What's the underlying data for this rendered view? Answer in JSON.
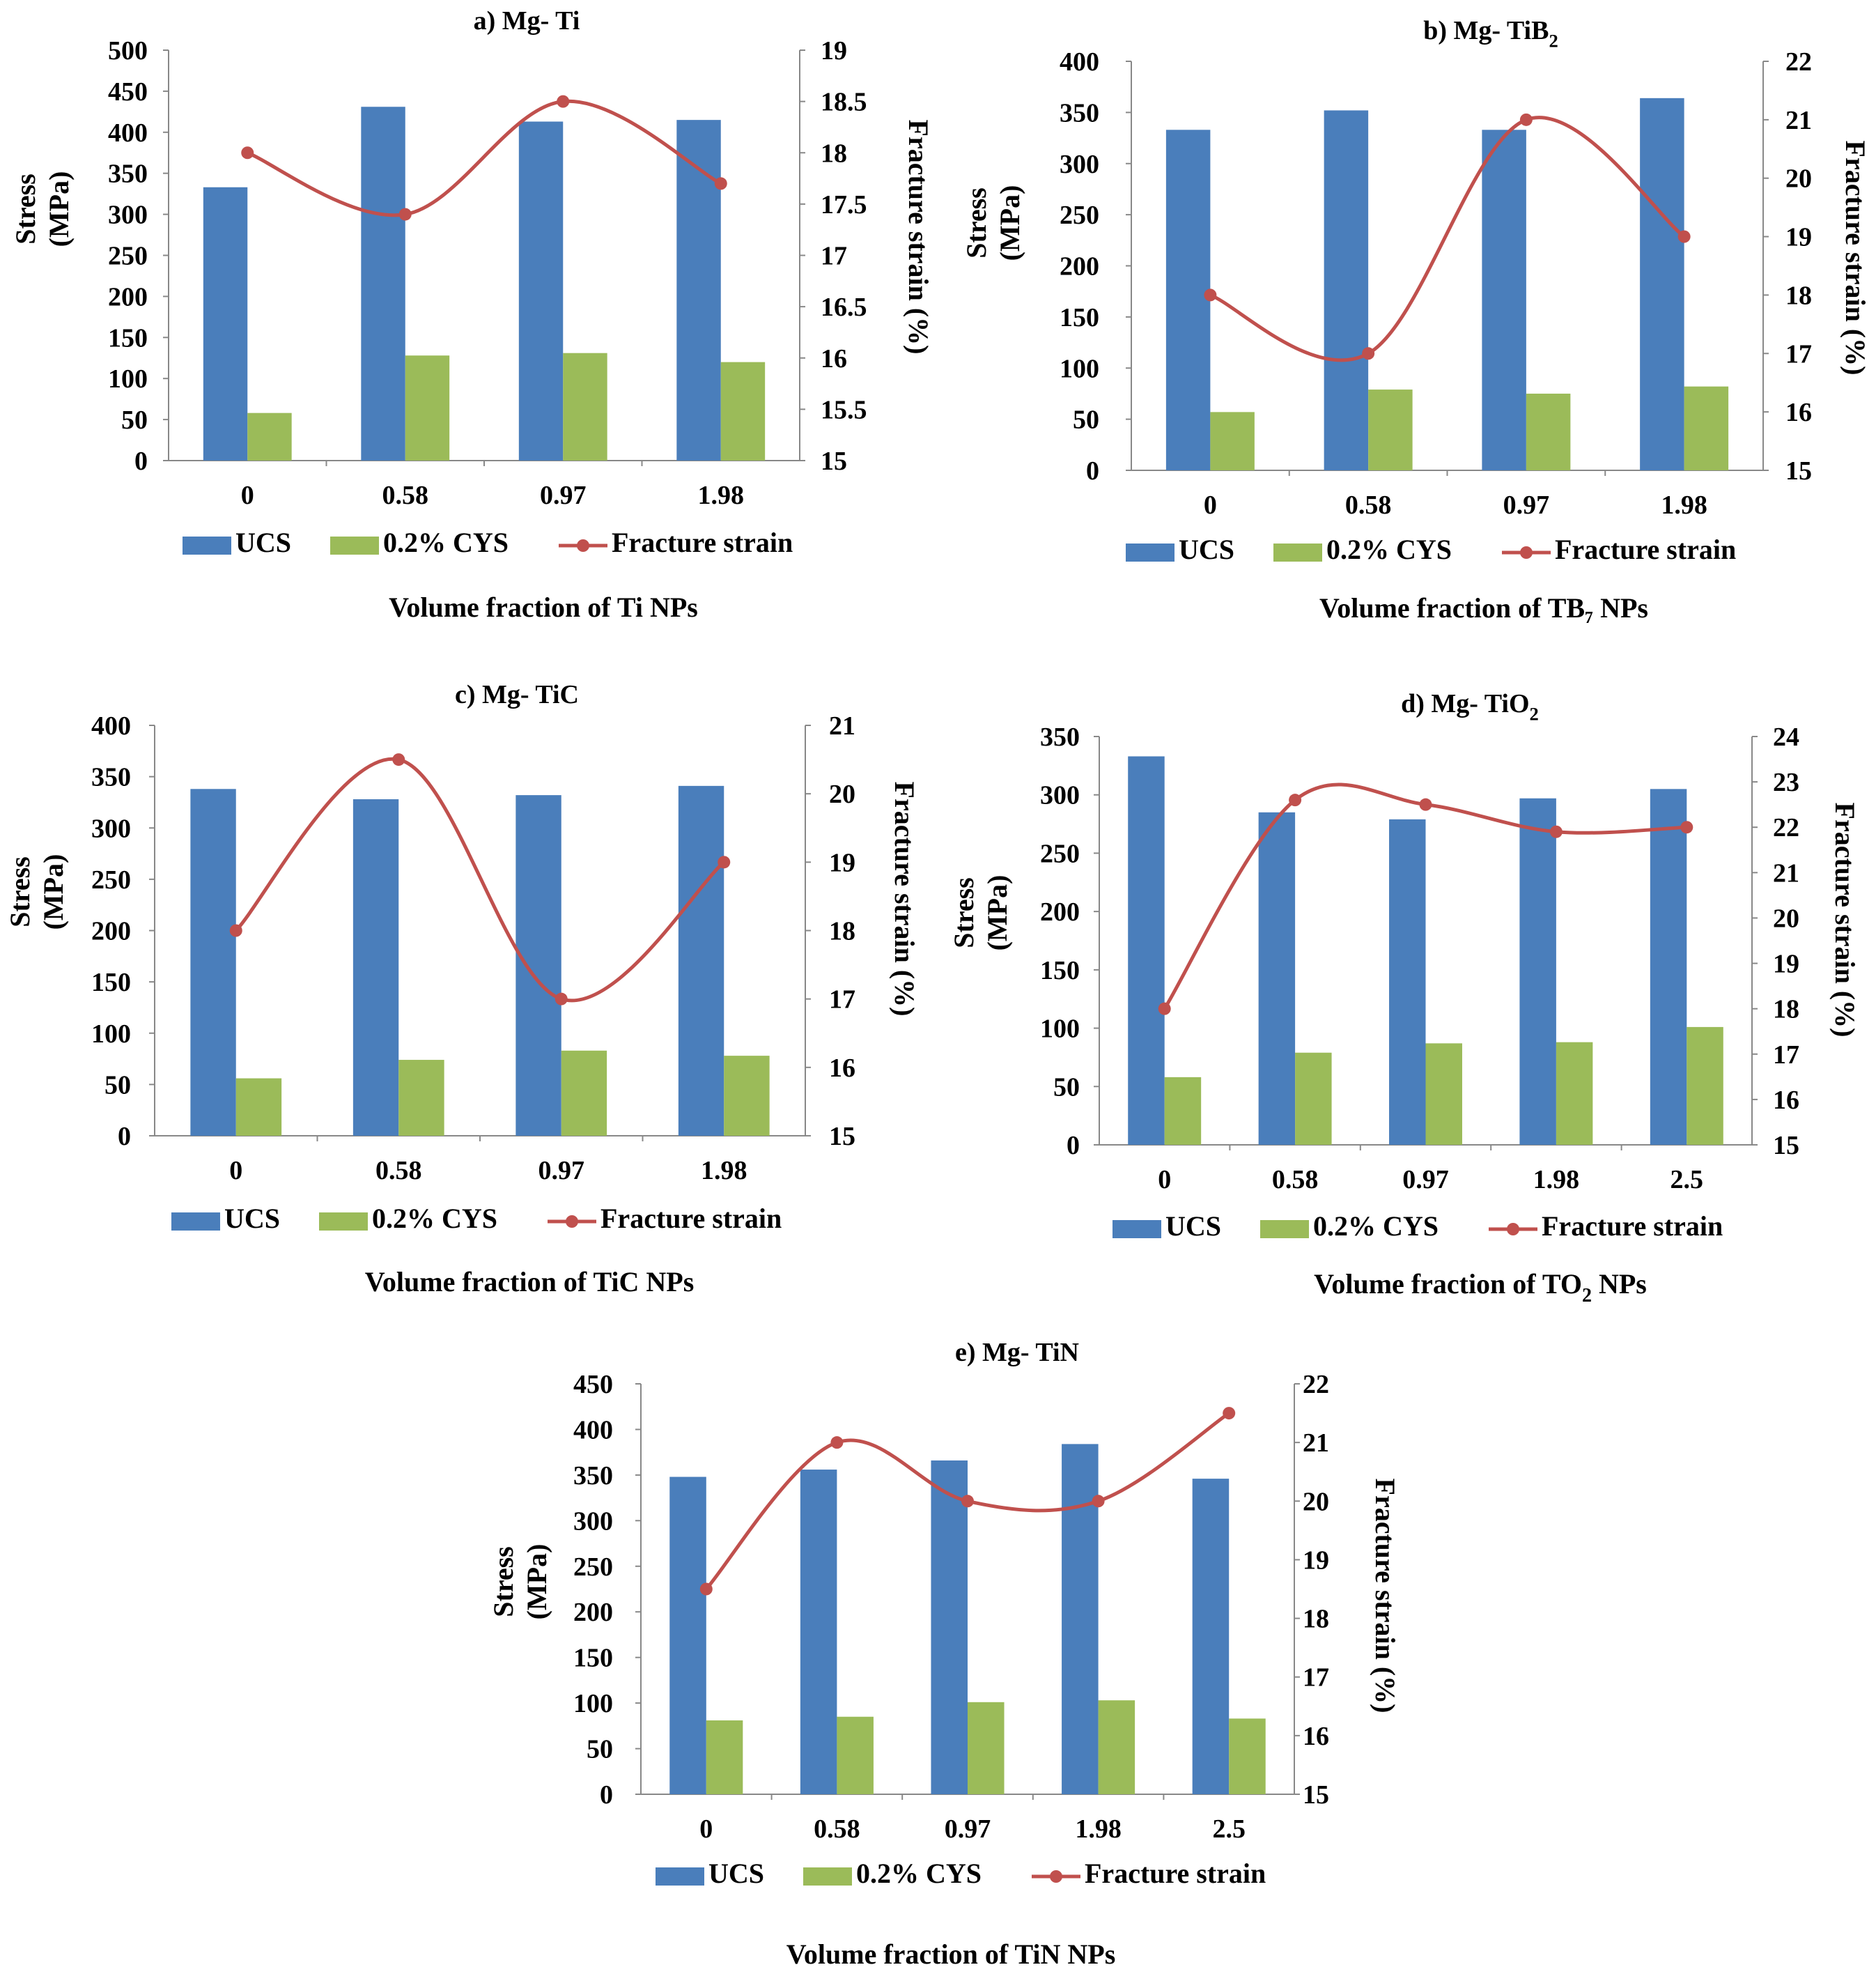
{
  "colors": {
    "ucs": "#4A7EBB",
    "cys": "#9BBB59",
    "strain": "#C0504D",
    "axis": "#888888"
  },
  "legend": {
    "ucs": "UCS",
    "cys": "0.2% CYS",
    "strain": "Fracture strain"
  },
  "left_axis_label": [
    "Stress",
    "(MPa)"
  ],
  "right_axis_label": "Fracture strain (%)",
  "chart_data": [
    {
      "id": "a",
      "type": "bar+line",
      "title": "a) Mg- Ti",
      "xlabel": "Volume fraction of Ti NPs",
      "categories": [
        "0",
        "0.58",
        "0.97",
        "1.98"
      ],
      "y_left": {
        "min": 0,
        "max": 500,
        "step": 50
      },
      "y_right": {
        "min": 15,
        "max": 19,
        "step": 0.5
      },
      "series": [
        {
          "name": "UCS",
          "type": "bar",
          "axis": "left",
          "values": [
            333,
            431,
            413,
            415
          ]
        },
        {
          "name": "0.2% CYS",
          "type": "bar",
          "axis": "left",
          "values": [
            58,
            128,
            131,
            120
          ]
        },
        {
          "name": "Fracture strain",
          "type": "line",
          "axis": "right",
          "values": [
            18.0,
            17.4,
            18.5,
            17.7
          ]
        }
      ]
    },
    {
      "id": "b",
      "type": "bar+line",
      "title": "b) Mg- TiB",
      "title_sub": "2",
      "xlabel": "Volume fraction of TB₇ NPs",
      "categories": [
        "0",
        "0.58",
        "0.97",
        "1.98"
      ],
      "y_left": {
        "min": 0,
        "max": 400,
        "step": 50
      },
      "y_right": {
        "min": 15,
        "max": 22,
        "step": 1
      },
      "series": [
        {
          "name": "UCS",
          "type": "bar",
          "axis": "left",
          "values": [
            333,
            352,
            333,
            364
          ]
        },
        {
          "name": "0.2% CYS",
          "type": "bar",
          "axis": "left",
          "values": [
            57,
            79,
            75,
            82
          ]
        },
        {
          "name": "Fracture strain",
          "type": "line",
          "axis": "right",
          "values": [
            18.0,
            17.0,
            21.0,
            19.0
          ]
        }
      ]
    },
    {
      "id": "c",
      "type": "bar+line",
      "title": "c) Mg- TiC",
      "xlabel": "Volume fraction of TiC NPs",
      "categories": [
        "0",
        "0.58",
        "0.97",
        "1.98"
      ],
      "y_left": {
        "min": 0,
        "max": 400,
        "step": 50
      },
      "y_right": {
        "min": 15,
        "max": 21,
        "step": 1
      },
      "series": [
        {
          "name": "UCS",
          "type": "bar",
          "axis": "left",
          "values": [
            338,
            328,
            332,
            341
          ]
        },
        {
          "name": "0.2% CYS",
          "type": "bar",
          "axis": "left",
          "values": [
            56,
            74,
            83,
            78
          ]
        },
        {
          "name": "Fracture strain",
          "type": "line",
          "axis": "right",
          "values": [
            18.0,
            20.5,
            17.0,
            19.0
          ]
        }
      ]
    },
    {
      "id": "d",
      "type": "bar+line",
      "title": "d) Mg- TiO",
      "title_sub": "2",
      "xlabel": "Volume fraction of TO",
      "xlabel_sub": "2",
      "xlabel_suffix": " NPs",
      "categories": [
        "0",
        "0.58",
        "0.97",
        "1.98",
        "2.5"
      ],
      "y_left": {
        "min": 0,
        "max": 350,
        "step": 50
      },
      "y_right": {
        "min": 15,
        "max": 24,
        "step": 1
      },
      "series": [
        {
          "name": "UCS",
          "type": "bar",
          "axis": "left",
          "values": [
            333,
            285,
            279,
            297,
            305
          ]
        },
        {
          "name": "0.2% CYS",
          "type": "bar",
          "axis": "left",
          "values": [
            58,
            79,
            87,
            88,
            101
          ]
        },
        {
          "name": "Fracture strain",
          "type": "line",
          "axis": "right",
          "values": [
            18.0,
            22.6,
            22.5,
            21.9,
            22.0
          ]
        }
      ]
    },
    {
      "id": "e",
      "type": "bar+line",
      "title": "e) Mg- TiN",
      "xlabel": "Volume fraction of TiN NPs",
      "categories": [
        "0",
        "0.58",
        "0.97",
        "1.98",
        "2.5"
      ],
      "y_left": {
        "min": 0,
        "max": 450,
        "step": 50
      },
      "y_right": {
        "min": 15,
        "max": 22,
        "step": 1
      },
      "series": [
        {
          "name": "UCS",
          "type": "bar",
          "axis": "left",
          "values": [
            348,
            356,
            366,
            384,
            346
          ]
        },
        {
          "name": "0.2% CYS",
          "type": "bar",
          "axis": "left",
          "values": [
            81,
            85,
            101,
            103,
            83
          ]
        },
        {
          "name": "Fracture strain",
          "type": "line",
          "axis": "right",
          "values": [
            18.5,
            21.0,
            20.0,
            20.0,
            21.5
          ]
        }
      ]
    }
  ]
}
